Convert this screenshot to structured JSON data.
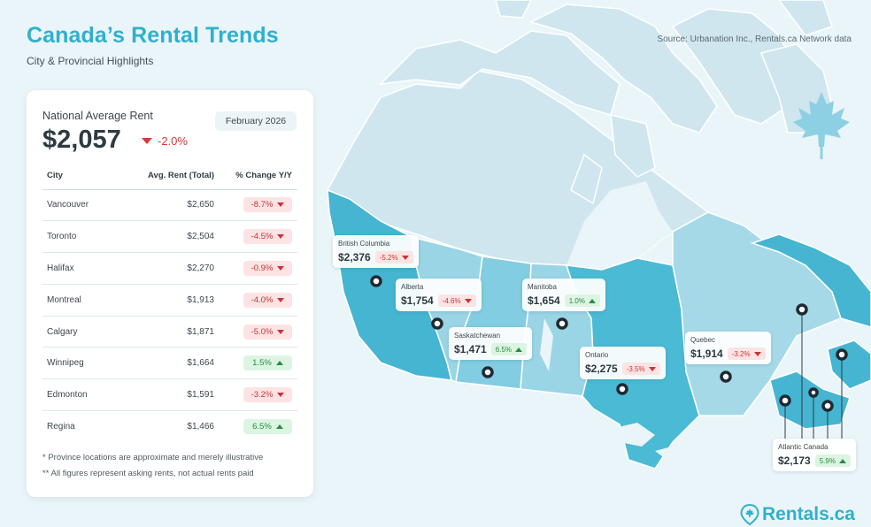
{
  "header": {
    "title": "Canada’s Rental Trends",
    "subtitle": "City & Provincial Highlights",
    "source": "Source: Urbanation Inc., Rentals.ca Network data"
  },
  "national": {
    "label": "National Average Rent",
    "value": "$2,057",
    "change": "-2.0%",
    "date": "February 2026"
  },
  "table": {
    "headers": [
      "City",
      "Avg. Rent (Total)",
      "% Change Y/Y"
    ],
    "rows": [
      {
        "city": "Vancouver",
        "rent": "$2,650",
        "change": "-8.7%",
        "direction": "down"
      },
      {
        "city": "Toronto",
        "rent": "$2,504",
        "change": "-4.5%",
        "direction": "down"
      },
      {
        "city": "Halifax",
        "rent": "$2,270",
        "change": "-0.9%",
        "direction": "down"
      },
      {
        "city": "Montreal",
        "rent": "$1,913",
        "change": "-4.0%",
        "direction": "down"
      },
      {
        "city": "Calgary",
        "rent": "$1,871",
        "change": "-5.0%",
        "direction": "down"
      },
      {
        "city": "Winnipeg",
        "rent": "$1,664",
        "change": "1.5%",
        "direction": "up"
      },
      {
        "city": "Edmonton",
        "rent": "$1,591",
        "change": "-3.2%",
        "direction": "down"
      },
      {
        "city": "Regina",
        "rent": "$1,466",
        "change": "6.5%",
        "direction": "up"
      }
    ]
  },
  "notes": [
    "* Province locations are approximate and merely illustrative",
    "** All figures represent asking rents, not actual rents paid"
  ],
  "provinces": [
    {
      "name": "British Columbia",
      "rent": "$2,376",
      "change": "-5.2%",
      "direction": "down"
    },
    {
      "name": "Alberta",
      "rent": "$1,754",
      "change": "-4.6%",
      "direction": "down"
    },
    {
      "name": "Manitoba",
      "rent": "$1,654",
      "change": "1.0%",
      "direction": "up"
    },
    {
      "name": "Saskatchewan",
      "rent": "$1,471",
      "change": "6.5%",
      "direction": "up"
    },
    {
      "name": "Ontario",
      "rent": "$2,275",
      "change": "-3.5%",
      "direction": "down"
    },
    {
      "name": "Quebec",
      "rent": "$1,914",
      "change": "-3.2%",
      "direction": "down"
    },
    {
      "name": "Atlantic Canada",
      "rent": "$2,173",
      "change": "5.9%",
      "direction": "up"
    }
  ],
  "icons": {
    "national_change": "triangle-down-icon",
    "decorative": "maple-leaf-icon",
    "logo": "location-pin-maple-icon"
  },
  "logo": {
    "text": "Rentals.ca"
  },
  "colors": {
    "accent": "#2fb0cf",
    "negative": "#d63a3a",
    "positive": "#2a8a45",
    "land_light": "#cde6ef",
    "land_dark": "#4bbad4"
  }
}
